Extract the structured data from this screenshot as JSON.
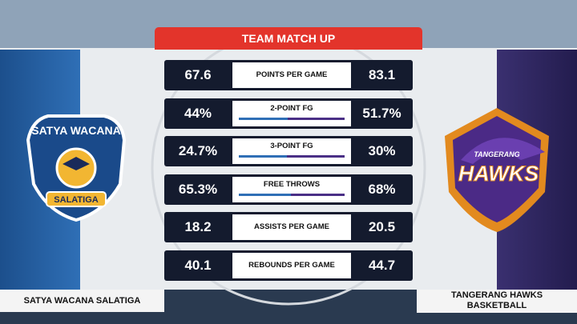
{
  "header": {
    "title": "TEAM MATCH UP"
  },
  "teams": {
    "left": "SATYA WACANA SALATIGA",
    "right_line1": "TANGERANG HAWKS",
    "right_line2": "BASKETBALL"
  },
  "logos": {
    "left_top": "SATYA WACANA",
    "left_bottom": "SALATIGA",
    "right_top": "TANGERANG",
    "right_main": "HAWKS"
  },
  "table": {
    "rows": [
      {
        "label": "POINTS PER GAME",
        "values": [
          67.6,
          83.1
        ]
      },
      {
        "label": "2-POINT FG",
        "values": [
          44,
          51.7
        ],
        "value_labels": [
          "44%",
          "51.7%"
        ],
        "bar": true
      },
      {
        "label": "3-POINT FG",
        "values": [
          24.7,
          30
        ],
        "value_labels": [
          "24.7%",
          "30%"
        ],
        "bar": true
      },
      {
        "label": "FREE THROWS",
        "values": [
          65.3,
          68
        ],
        "value_labels": [
          "65.3%",
          "68%"
        ],
        "bar": true
      },
      {
        "label": "ASSISTS PER GAME",
        "values": [
          18.2,
          20.5
        ]
      },
      {
        "label": "REBOUNDS PER GAME",
        "values": [
          40.1,
          44.7
        ]
      }
    ],
    "colors": [
      "#2f6fb6",
      "#4a2f86"
    ]
  }
}
